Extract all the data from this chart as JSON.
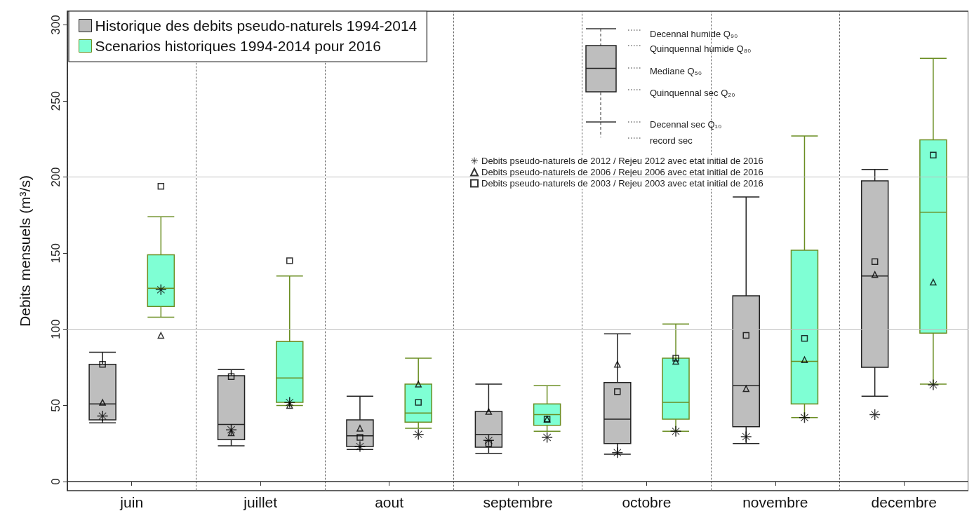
{
  "chart_data": {
    "type": "box",
    "categories": [
      "juin",
      "juillet",
      "aout",
      "septembre",
      "octobre",
      "novembre",
      "decembre"
    ],
    "ylabel": "Debits mensuels (m³/s)",
    "ylim": [
      -6,
      309
    ],
    "yticks": [
      0,
      50,
      100,
      150,
      200,
      250,
      300
    ],
    "grid": "x",
    "legend": "top left",
    "ref_lines": [
      {
        "axis": "y",
        "value": 100,
        "color": "#bebebe"
      },
      {
        "axis": "y",
        "value": 200,
        "color": "#bebebe"
      }
    ],
    "annotations": [
      "Decennal humide Q₉₀",
      "Quinquennal humide Q₈₀",
      "Mediane Q₅₀",
      "Quinquennal sec Q₂₀",
      "Decennal sec Q₁₀",
      "record sec"
    ],
    "series": [
      {
        "name": "Historique des debits pseudo-naturels 1994-2014",
        "color": "#bebebe",
        "boxes": [
          {
            "low": 38.5,
            "q1": 40.5,
            "median": 51,
            "q3": 77,
            "high": 85
          },
          {
            "low": 23.5,
            "q1": 27.5,
            "median": 37.5,
            "q3": 69.5,
            "high": 73.5
          },
          {
            "low": 21,
            "q1": 23,
            "median": 30,
            "q3": 40.5,
            "high": 56
          },
          {
            "low": 18.5,
            "q1": 22.5,
            "median": 31,
            "q3": 46,
            "high": 64
          },
          {
            "low": 18,
            "q1": 25,
            "median": 41,
            "q3": 65,
            "high": 97
          },
          {
            "low": 25,
            "q1": 36,
            "median": 63,
            "q3": 122,
            "high": 187
          },
          {
            "low": 56,
            "q1": 75,
            "median": 135,
            "q3": 197.5,
            "high": 205
          }
        ]
      },
      {
        "name": "Scenarios historiques 1994-2014 pour 2016",
        "color": "#7fffd4",
        "boxes": [
          {
            "low": 108,
            "q1": 115,
            "median": 127,
            "q3": 149,
            "high": 174
          },
          {
            "low": 50,
            "q1": 52,
            "median": 68,
            "q3": 92,
            "high": 135
          },
          {
            "low": 35,
            "q1": 39,
            "median": 45,
            "q3": 64,
            "high": 81
          },
          {
            "low": 33,
            "q1": 37,
            "median": 44,
            "q3": 51,
            "high": 63
          },
          {
            "low": 33,
            "q1": 41,
            "median": 52,
            "q3": 81,
            "high": 103.5
          },
          {
            "low": 42,
            "q1": 51,
            "median": 79,
            "q3": 152,
            "high": 227
          },
          {
            "low": 64,
            "q1": 97.5,
            "median": 177,
            "q3": 224.5,
            "high": 278
          }
        ]
      },
      {
        "type": "scatter",
        "name": "Debits pseudo-naturels de 2012 / Rejeu 2012 avec etat initial de 2016",
        "color": "#000000",
        "marker": "star",
        "x": [
          "juin",
          "juin",
          "juillet",
          "juillet",
          "aout",
          "aout",
          "septembre",
          "septembre",
          "octobre",
          "octobre",
          "novembre",
          "novembre",
          "decembre",
          "decembre"
        ],
        "values": [
          43,
          126,
          34,
          52,
          23,
          31,
          27,
          29,
          19,
          33,
          29.5,
          42,
          44,
          63.5
        ]
      },
      {
        "type": "scatter",
        "name": "Debits pseudo-naturels de 2006 / Rejeu 2006 avec etat initial de 2016",
        "color": "#000000",
        "marker": "triangle",
        "x": [
          "juin",
          "juin",
          "juillet",
          "juillet",
          "aout",
          "aout",
          "septembre",
          "septembre",
          "octobre",
          "octobre",
          "novembre",
          "novembre",
          "decembre",
          "decembre"
        ],
        "values": [
          52,
          96,
          32,
          50,
          35,
          64,
          46,
          41,
          77,
          79,
          61,
          80,
          136,
          131
        ]
      },
      {
        "type": "scatter",
        "name": "Debits pseudo-naturels de 2003 / Rejeu 2003 avec etat initial de 2016",
        "color": "#000000",
        "marker": "square",
        "x": [
          "juin",
          "juin",
          "juillet",
          "juillet",
          "aout",
          "aout",
          "septembre",
          "septembre",
          "octobre",
          "octobre",
          "novembre",
          "novembre",
          "decembre",
          "decembre"
        ],
        "values": [
          77,
          194,
          69,
          145,
          29,
          52,
          25,
          41,
          59,
          81,
          96,
          94,
          144.5,
          214.5
        ]
      }
    ]
  }
}
